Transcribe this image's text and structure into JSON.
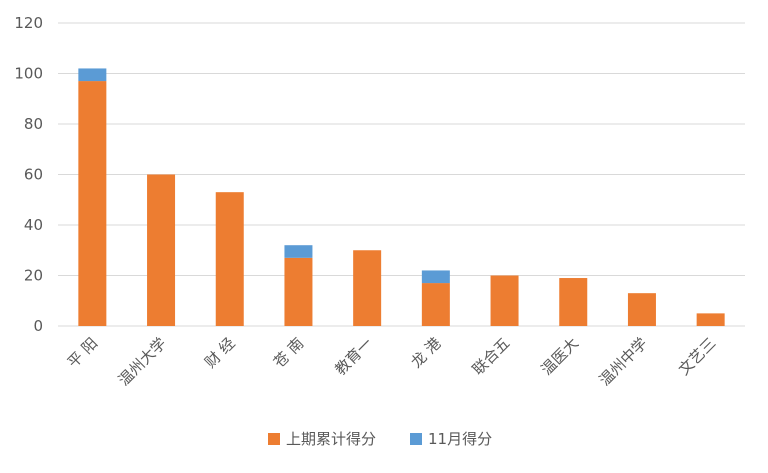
{
  "chart_data": {
    "type": "bar",
    "stacked": true,
    "categories": [
      "平 阳",
      "温州大学",
      "财 经",
      "苍 南",
      "教育一",
      "龙 港",
      "联合五",
      "温医大",
      "温州中学",
      "文艺三"
    ],
    "series": [
      {
        "name": "上期累计得分",
        "color": "#ed7d31",
        "values": [
          97,
          60,
          53,
          27,
          30,
          17,
          20,
          19,
          13,
          5
        ]
      },
      {
        "name": "11月得分",
        "color": "#5b9bd5",
        "values": [
          5,
          0,
          0,
          5,
          0,
          5,
          0,
          0,
          0,
          0
        ]
      }
    ],
    "ylim": [
      0,
      120
    ],
    "yticks": [
      "0",
      "20",
      "40",
      "60",
      "80",
      "100",
      "120"
    ],
    "grid": true,
    "legend_position": "bottom"
  }
}
